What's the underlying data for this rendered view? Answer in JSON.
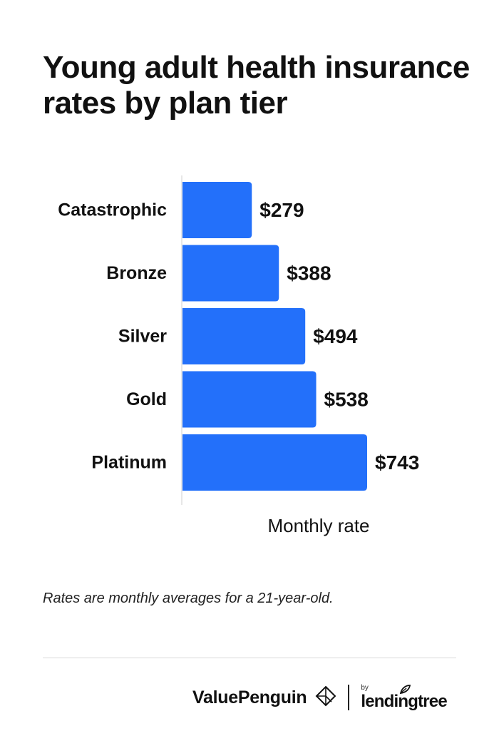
{
  "header": {
    "title": "Young adult health insurance rates by plan tier"
  },
  "chart_data": {
    "type": "bar",
    "orientation": "horizontal",
    "categories": [
      "Catastrophic",
      "Bronze",
      "Silver",
      "Gold",
      "Platinum"
    ],
    "values": [
      279,
      388,
      494,
      538,
      743
    ],
    "value_labels": [
      "$279",
      "$388",
      "$494",
      "$538",
      "$743"
    ],
    "xlabel": "Monthly rate",
    "ylabel": "",
    "xlim": [
      0,
      743
    ],
    "grid": false,
    "legend": "none",
    "bar_color": "#2370fa"
  },
  "footnote": "Rates are monthly averages for a 21-year-old.",
  "footer": {
    "brand_primary": "ValuePenguin",
    "brand_by": "by",
    "brand_secondary": "lendingtree"
  }
}
